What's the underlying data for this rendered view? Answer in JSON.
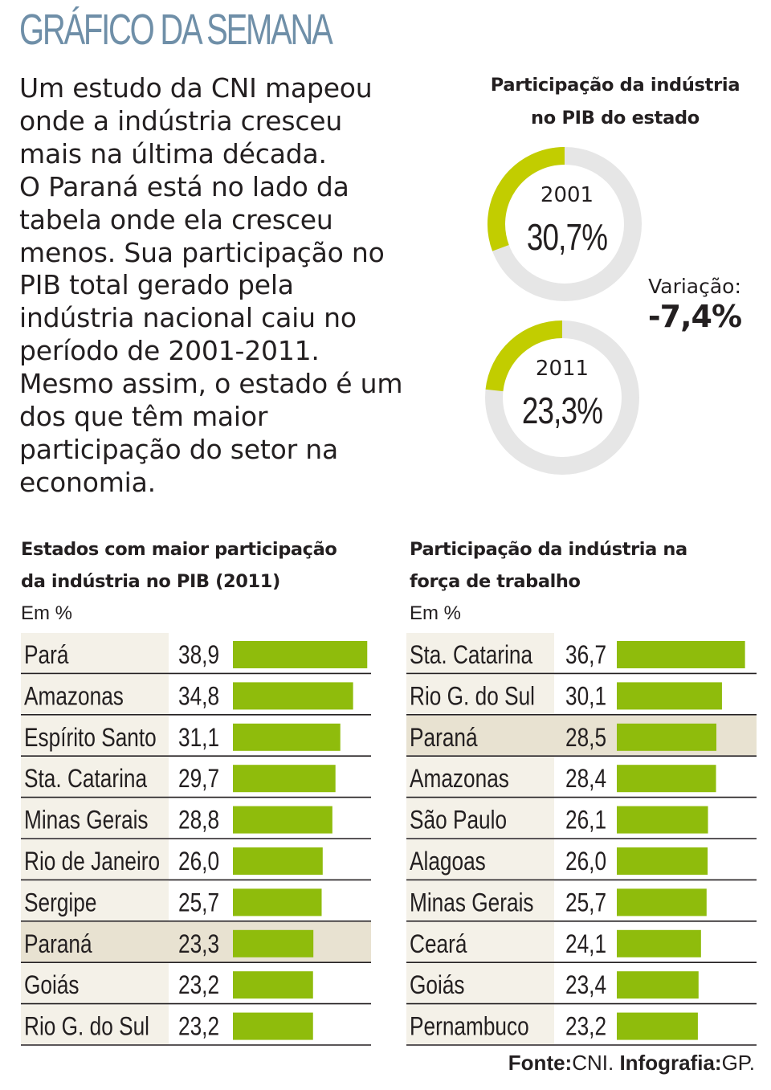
{
  "header": {
    "title": "GRÁFICO DA SEMANA"
  },
  "intro": {
    "lines": [
      "Um estudo da CNI mapeou",
      "onde a indústria cresceu",
      "mais na última década.",
      "O Paraná está no lado da",
      "tabela onde ela cresceu",
      "menos. Sua participação no",
      "PIB total gerado pela",
      "indústria nacional caiu no",
      "período de 2001-2011.",
      "Mesmo assim, o estado é um",
      "dos que têm maior",
      "participação do setor na",
      "economia."
    ]
  },
  "colors": {
    "headline": "#6f8fa8",
    "donut_fill": "#c2cd00",
    "donut_track": "#e6e6e6",
    "bar": "#8fbc0c",
    "label_bg": "#f4f1e8",
    "highlight_bg": "#e8e2d1",
    "divider": "#231f20"
  },
  "chart_data": [
    {
      "type": "pie",
      "title": "Participação da indústria no PIB do estado",
      "title_lines": [
        "Participação da indústria",
        "no PIB do estado"
      ],
      "series": [
        {
          "name": "2001",
          "value": 30.7,
          "value_label": "30,7%"
        },
        {
          "name": "2011",
          "value": 23.3,
          "value_label": "23,3%"
        }
      ],
      "annotation": {
        "label": "Variação:",
        "value": "-7,4%"
      }
    },
    {
      "type": "bar",
      "title": "Estados com maior participação da indústria no PIB (2011)",
      "title_lines": [
        "Estados com maior participação",
        "da indústria no PIB (2011)"
      ],
      "unit": "Em %",
      "categories": [
        "Pará",
        "Amazonas",
        "Espírito Santo",
        "Sta. Catarina",
        "Minas Gerais",
        "Rio de Janeiro",
        "Sergipe",
        "Paraná",
        "Goiás",
        "Rio G. do Sul"
      ],
      "values": [
        38.9,
        34.8,
        31.1,
        29.7,
        28.8,
        26.0,
        25.7,
        23.3,
        23.2,
        23.2
      ],
      "value_labels": [
        "38,9",
        "34,8",
        "31,1",
        "29,7",
        "28,8",
        "26,0",
        "25,7",
        "23,3",
        "23,2",
        "23,2"
      ],
      "highlight": "Paraná"
    },
    {
      "type": "bar",
      "title": "Participação da indústria na força de trabalho",
      "title_lines": [
        "Participação da indústria na",
        "força de trabalho"
      ],
      "unit": "Em %",
      "categories": [
        "Sta. Catarina",
        "Rio G. do Sul",
        "Paraná",
        "Amazonas",
        "São Paulo",
        "Alagoas",
        "Minas Gerais",
        "Ceará",
        "Goiás",
        "Pernambuco"
      ],
      "values": [
        36.7,
        30.1,
        28.5,
        28.4,
        26.1,
        26.0,
        25.7,
        24.1,
        23.4,
        23.2
      ],
      "value_labels": [
        "36,7",
        "30,1",
        "28,5",
        "28,4",
        "26,1",
        "26,0",
        "25,7",
        "24,1",
        "23,4",
        "23,2"
      ],
      "highlight": "Paraná"
    }
  ],
  "source": {
    "label": "Fonte:",
    "value": "CNI.",
    "credit_label": "Infografia:",
    "credit_value": "GP."
  }
}
